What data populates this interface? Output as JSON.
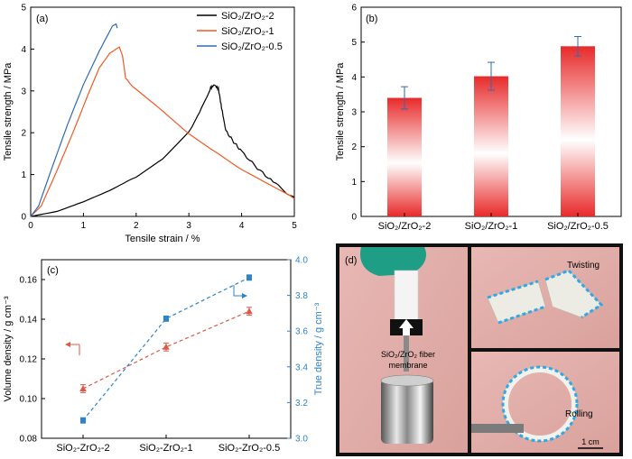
{
  "chart_data": [
    {
      "panel": "(a)",
      "type": "line",
      "xlabel": "Tensile strain / %",
      "ylabel": "Tensile strength / MPa",
      "xlim": [
        0,
        5
      ],
      "ylim": [
        0,
        5
      ],
      "xticks": [
        "0",
        "1",
        "2",
        "3",
        "4",
        "5"
      ],
      "yticks": [
        "0",
        "1",
        "2",
        "3",
        "4",
        "5"
      ],
      "legend": "top-right",
      "series": [
        {
          "name": "SiO₂/ZrO₂-2",
          "color": "#000000",
          "points": [
            [
              0,
              0
            ],
            [
              0.5,
              0.12
            ],
            [
              1,
              0.35
            ],
            [
              1.5,
              0.62
            ],
            [
              2,
              0.95
            ],
            [
              2.5,
              1.4
            ],
            [
              3,
              2.05
            ],
            [
              3.2,
              2.45
            ],
            [
              3.4,
              3.05
            ],
            [
              3.48,
              3.15
            ],
            [
              3.56,
              3.05
            ],
            [
              3.62,
              2.6
            ],
            [
              3.7,
              2.05
            ],
            [
              3.85,
              1.78
            ],
            [
              4,
              1.55
            ],
            [
              4.3,
              1.15
            ],
            [
              4.6,
              0.82
            ],
            [
              4.8,
              0.62
            ],
            [
              5,
              0.45
            ]
          ]
        },
        {
          "name": "SiO₂/ZrO₂-1",
          "color": "#ee5a24",
          "points": [
            [
              0,
              0
            ],
            [
              0.2,
              0.25
            ],
            [
              0.5,
              1.1
            ],
            [
              0.8,
              2.0
            ],
            [
              1.1,
              2.95
            ],
            [
              1.3,
              3.55
            ],
            [
              1.5,
              3.9
            ],
            [
              1.68,
              4.05
            ],
            [
              1.74,
              3.85
            ],
            [
              1.8,
              3.3
            ],
            [
              2,
              3.05
            ],
            [
              2.5,
              2.55
            ],
            [
              3,
              2.0
            ],
            [
              3.5,
              1.55
            ],
            [
              4,
              1.1
            ],
            [
              4.5,
              0.75
            ],
            [
              5,
              0.42
            ]
          ]
        },
        {
          "name": "SiO₂/ZrO₂-0.5",
          "color": "#2f6bb5",
          "points": [
            [
              0,
              0
            ],
            [
              0.15,
              0.25
            ],
            [
              0.4,
              1.15
            ],
            [
              0.7,
              2.2
            ],
            [
              1.0,
              3.15
            ],
            [
              1.3,
              3.95
            ],
            [
              1.55,
              4.55
            ],
            [
              1.62,
              4.6
            ],
            [
              1.64,
              4.5
            ]
          ]
        }
      ]
    },
    {
      "panel": "(b)",
      "type": "bar",
      "ylabel": "Tensile strength / MPa",
      "ylim": [
        0,
        6
      ],
      "yticks": [
        "0",
        "1",
        "2",
        "3",
        "4",
        "5",
        "6"
      ],
      "categories": [
        "SiO₂/ZrO₂-2",
        "SiO₂/ZrO₂-1",
        "SiO₂/ZrO₂-0.5"
      ],
      "values": [
        3.4,
        4.02,
        4.88
      ],
      "errors": [
        0.32,
        0.4,
        0.28
      ],
      "bar_color": "#e82a2a"
    },
    {
      "panel": "(c)",
      "type": "line",
      "categories": [
        "SiO₂-ZrO₂-2",
        "SiO₂-ZrO₂-1",
        "SiO₂-ZrO₂-0.5"
      ],
      "ylabel_left": "Volume density / g cm⁻³",
      "ylabel_right": "True density / g cm⁻³",
      "ylim_left": [
        0.08,
        0.17
      ],
      "ylim_right": [
        3.0,
        4.0
      ],
      "yticks_left": [
        "0.08",
        "0.10",
        "0.12",
        "0.14",
        "0.16"
      ],
      "yticks_right": [
        "3.0",
        "3.2",
        "3.4",
        "3.6",
        "3.8",
        "4.0"
      ],
      "series": [
        {
          "name": "Volume density",
          "axis": "left",
          "color": "#dd5a4a",
          "marker": "triangle",
          "values": [
            0.105,
            0.126,
            0.144
          ],
          "errors": [
            0.002,
            0.002,
            0.002
          ]
        },
        {
          "name": "True density",
          "axis": "right",
          "color": "#2f83c9",
          "marker": "square",
          "values": [
            3.1,
            3.67,
            3.9
          ],
          "errors": [
            0.015,
            0.015,
            0.015
          ]
        }
      ]
    }
  ],
  "photo_panel": {
    "panel": "(d)",
    "label_fiber": "SiO₂/ZrO₂ fiber",
    "label_membrane": "membrane",
    "label_twisting": "Twisting",
    "label_rolling": "Rolling",
    "scale_bar": "1 cm"
  }
}
